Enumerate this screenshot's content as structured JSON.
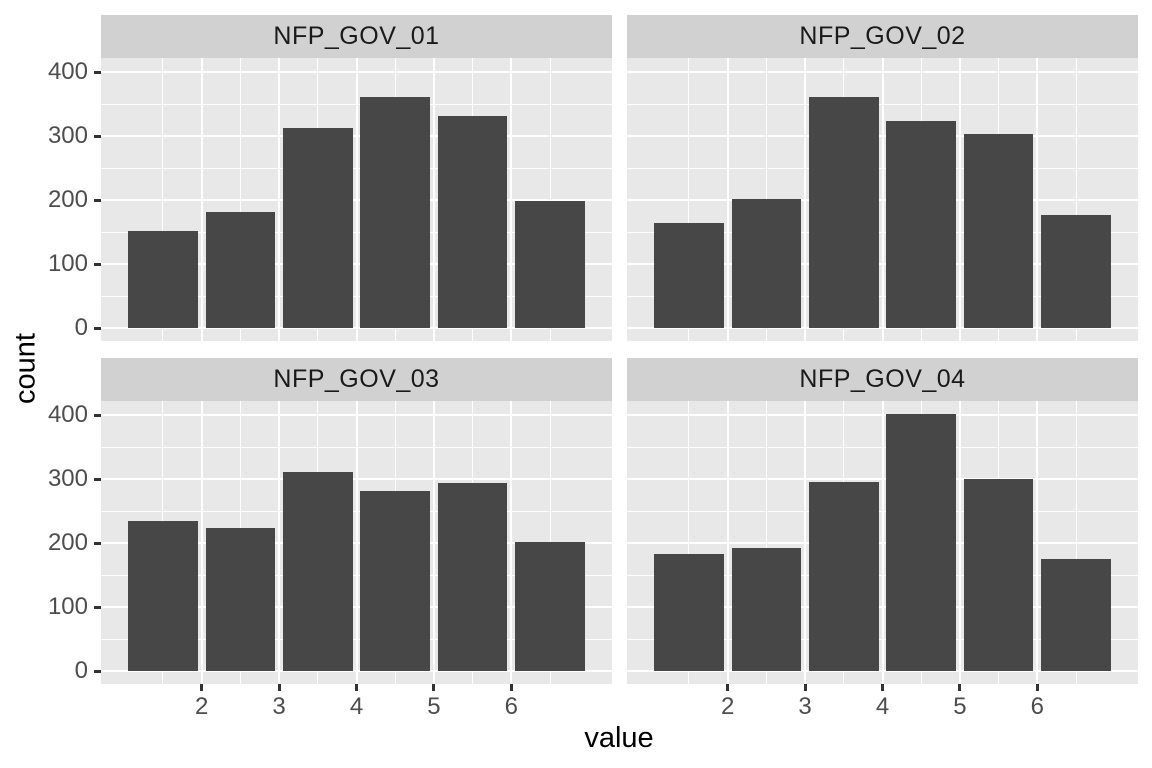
{
  "chart_data": {
    "type": "bar",
    "subtype": "faceted-histogram",
    "title": "",
    "xlabel": "value",
    "ylabel": "count",
    "legend": "none",
    "grid": "on",
    "x_range": [
      0.7,
      7.3
    ],
    "y_range": [
      -20.1,
      422.1
    ],
    "x_major_ticks": [
      2,
      3,
      4,
      5,
      6
    ],
    "x_minor_gridlines": [
      1.5,
      2.5,
      3.5,
      4.5,
      5.5,
      6.5
    ],
    "y_major_ticks": [
      0,
      100,
      200,
      300,
      400
    ],
    "y_minor_gridlines": [
      50,
      150,
      250,
      350
    ],
    "bin_centers": [
      1.5,
      2.5,
      3.5,
      4.5,
      5.5,
      6.5
    ],
    "bar_width_units": 0.9,
    "facets": [
      {
        "label": "NFP_GOV_01",
        "values": [
          151,
          182,
          313,
          361,
          332,
          199
        ]
      },
      {
        "label": "NFP_GOV_02",
        "values": [
          164,
          202,
          361,
          323,
          303,
          177
        ]
      },
      {
        "label": "NFP_GOV_03",
        "values": [
          235,
          223,
          311,
          282,
          294,
          202
        ]
      },
      {
        "label": "NFP_GOV_04",
        "values": [
          183,
          193,
          296,
          402,
          300,
          175
        ]
      }
    ],
    "colors": {
      "bar_fill": "#474747",
      "panel_background": "#e8e8e8",
      "strip_background": "#d1d1d1",
      "gridline": "#ffffff",
      "axis_text": "#4d4d4d",
      "strip_text": "#1a1a1a",
      "axis_title_text": "#000000",
      "tick_mark": "#333333",
      "page_background": "#ffffff"
    }
  }
}
